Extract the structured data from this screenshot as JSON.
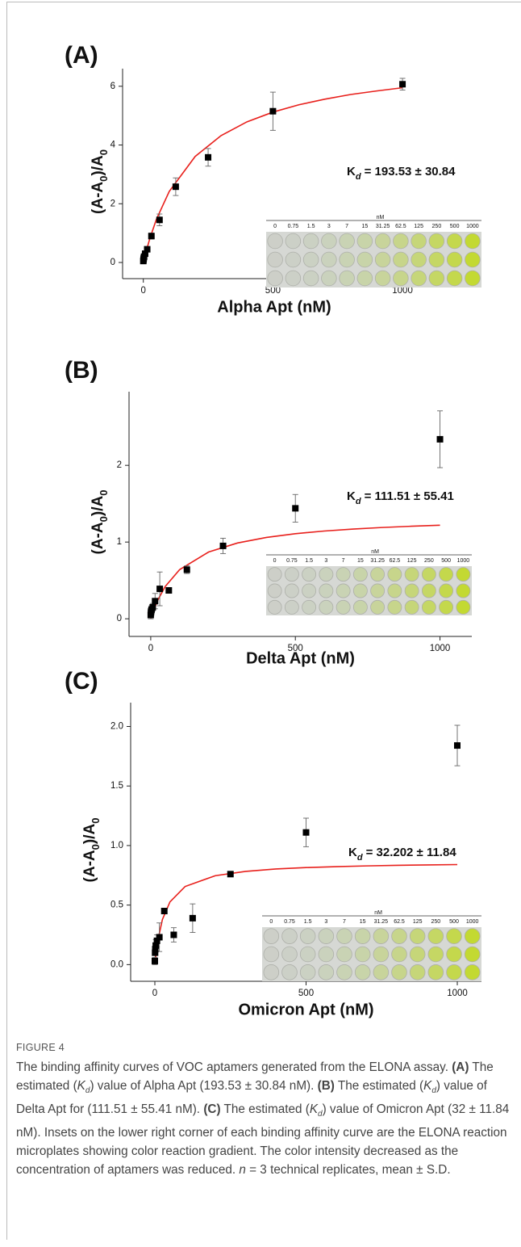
{
  "chart_data": [
    {
      "type": "scatter",
      "panel_label": "(A)",
      "xlabel": "Alpha Apt (nM)",
      "ylabel_parts": [
        "(A-A",
        "0",
        ")/A",
        "0"
      ],
      "annotation": {
        "symbol": "K",
        "subscript": "d",
        "text": "= 193.53 ± 30.84"
      },
      "x": [
        0,
        0.75,
        1.5,
        3,
        7,
        15,
        31.25,
        62.5,
        125,
        250,
        500,
        1000
      ],
      "values": [
        0.05,
        0.1,
        0.15,
        0.2,
        0.3,
        0.45,
        0.9,
        1.45,
        2.58,
        3.58,
        5.15,
        6.07
      ],
      "errors": [
        0.05,
        0.05,
        0.05,
        0.05,
        0.05,
        0.08,
        0.1,
        0.2,
        0.3,
        0.3,
        0.65,
        0.2
      ],
      "marker_color": "#000000",
      "fit": {
        "color": "#e8201c",
        "x": [
          0,
          10,
          25,
          50,
          100,
          200,
          300,
          400,
          500,
          600,
          700,
          800,
          900,
          1000
        ],
        "values": [
          0,
          0.35,
          0.81,
          1.46,
          2.42,
          3.61,
          4.32,
          4.79,
          5.12,
          5.37,
          5.56,
          5.72,
          5.84,
          5.95
        ]
      },
      "xlim": [
        -80,
        1090
      ],
      "ylim": [
        -0.55,
        6.6
      ],
      "xticks": [
        0,
        500,
        1000
      ],
      "yticks": [
        0,
        2,
        4,
        6
      ],
      "inset": {
        "unit": "nM",
        "labels": [
          "0",
          "0.75",
          "1.5",
          "3",
          "7",
          "15",
          "31.25",
          "62.5",
          "125",
          "250",
          "500",
          "1000"
        ]
      }
    },
    {
      "type": "scatter",
      "panel_label": "(B)",
      "xlabel": "Delta Apt (nM)",
      "ylabel_parts": [
        "(A-A",
        "0",
        ")/A",
        "0"
      ],
      "annotation": {
        "symbol": "K",
        "subscript": "d",
        "text": "= 111.51 ± 55.41"
      },
      "x": [
        0,
        0.75,
        1.5,
        3,
        7,
        15,
        31.25,
        62.5,
        125,
        250,
        500,
        1000
      ],
      "values": [
        0.05,
        0.08,
        0.1,
        0.12,
        0.15,
        0.23,
        0.39,
        0.37,
        0.64,
        0.95,
        1.44,
        2.34
      ],
      "errors": [
        0.05,
        0.05,
        0.05,
        0.05,
        0.05,
        0.1,
        0.22,
        0.03,
        0.05,
        0.1,
        0.18,
        0.37
      ],
      "marker_color": "#000000",
      "fit": {
        "color": "#e8201c",
        "x": [
          0,
          10,
          25,
          50,
          100,
          200,
          300,
          400,
          500,
          600,
          700,
          800,
          900,
          1000
        ],
        "values": [
          0,
          0.112,
          0.248,
          0.42,
          0.641,
          0.87,
          0.988,
          1.06,
          1.109,
          1.144,
          1.17,
          1.19,
          1.206,
          1.22
        ]
      },
      "xlim": [
        -75,
        1110
      ],
      "ylim": [
        -0.23,
        2.96
      ],
      "xticks": [
        0,
        500,
        1000
      ],
      "yticks": [
        0,
        1,
        2
      ],
      "inset": {
        "unit": "nM",
        "labels": [
          "0",
          "0.75",
          "1.5",
          "3",
          "7",
          "15",
          "31.25",
          "62.5",
          "125",
          "250",
          "500",
          "1000"
        ]
      }
    },
    {
      "type": "scatter",
      "panel_label": "(C)",
      "xlabel": "Omicron Apt (nM)",
      "ylabel_parts": [
        "(A-A",
        "0",
        ")/A",
        "0"
      ],
      "annotation": {
        "symbol": "K",
        "subscript": "d",
        "text": "= 32.202 ± 11.84"
      },
      "x": [
        0,
        0.75,
        1.5,
        3,
        7,
        15,
        31.25,
        62.5,
        125,
        250,
        500,
        1000
      ],
      "values": [
        0.03,
        0.1,
        0.13,
        0.16,
        0.2,
        0.23,
        0.45,
        0.25,
        0.39,
        0.76,
        1.11,
        1.84
      ],
      "errors": [
        0.03,
        0.05,
        0.05,
        0.05,
        0.05,
        0.12,
        0.01,
        0.06,
        0.12,
        0.01,
        0.12,
        0.17
      ],
      "marker_color": "#000000",
      "fit": {
        "color": "#e8201c",
        "x": [
          0,
          5,
          10,
          25,
          50,
          100,
          200,
          300,
          400,
          500,
          600,
          700,
          800,
          900,
          1000
        ],
        "values": [
          0,
          0.117,
          0.205,
          0.379,
          0.527,
          0.656,
          0.747,
          0.783,
          0.803,
          0.815,
          0.823,
          0.829,
          0.834,
          0.837,
          0.84
        ]
      },
      "xlim": [
        -80,
        1080
      ],
      "ylim": [
        -0.14,
        2.2
      ],
      "xticks": [
        0,
        500,
        1000
      ],
      "yticks": [
        {
          "value": 0,
          "label": "0.0"
        },
        {
          "value": 0.5,
          "label": "0.5"
        },
        {
          "value": 1,
          "label": "1.0"
        },
        {
          "value": 1.5,
          "label": "1.5"
        },
        {
          "value": 2,
          "label": "2.0"
        }
      ],
      "inset": {
        "unit": "nM",
        "labels": [
          "0",
          "0.75",
          "1.5",
          "3",
          "7",
          "15",
          "31.25",
          "62.5",
          "125",
          "250",
          "500",
          "1000"
        ]
      }
    }
  ],
  "caption": {
    "label": "FIGURE 4",
    "runs": [
      {
        "text": "The binding affinity curves of VOC aptamers generated from the ELONA assay. ",
        "style": "n"
      },
      {
        "text": "(A)",
        "style": "b"
      },
      {
        "text": " The estimated (",
        "style": "n"
      },
      {
        "text": "K",
        "style": "i"
      },
      {
        "text": "d",
        "style": "isub"
      },
      {
        "text": ") value of Alpha Apt (193.53 ± 30.84 nM). ",
        "style": "n"
      },
      {
        "text": "(B)",
        "style": "b"
      },
      {
        "text": " The estimated (",
        "style": "n"
      },
      {
        "text": "K",
        "style": "i"
      },
      {
        "text": "d",
        "style": "isub"
      },
      {
        "text": ") value of Delta Apt for (111.51 ± 55.41 nM). ",
        "style": "n"
      },
      {
        "text": "(C)",
        "style": "b"
      },
      {
        "text": " The estimated (",
        "style": "n"
      },
      {
        "text": "K",
        "style": "i"
      },
      {
        "text": "d",
        "style": "isub"
      },
      {
        "text": ") value of Omicron Apt (32 ± 11.84 nM). Insets on the lower right corner of each binding affinity curve are the ELONA reaction microplates showing color reaction gradient. The color intensity decreased as the concentration of aptamers was reduced. ",
        "style": "n"
      },
      {
        "text": "n",
        "style": "i"
      },
      {
        "text": " = 3 technical replicates, mean ± S.D.",
        "style": "n"
      }
    ]
  }
}
